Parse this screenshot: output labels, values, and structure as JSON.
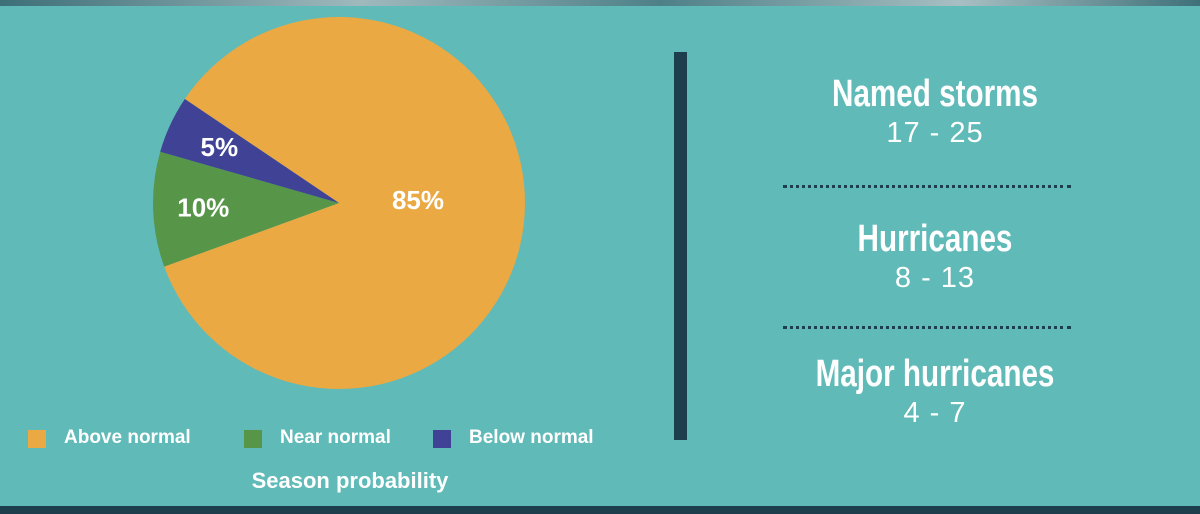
{
  "chart_data": {
    "type": "pie",
    "title": "Season probability",
    "slices": [
      {
        "label": "Above normal",
        "value": 85,
        "value_label": "85%",
        "color": "#eaa943"
      },
      {
        "label": "Near normal",
        "value": 10,
        "value_label": "10%",
        "color": "#579649"
      },
      {
        "label": "Below normal",
        "value": 5,
        "value_label": "5%",
        "color": "#3f4295"
      }
    ]
  },
  "legend": [
    {
      "label": "Above normal",
      "color": "#eaa943"
    },
    {
      "label": "Near normal",
      "color": "#579649"
    },
    {
      "label": "Below normal",
      "color": "#3f4295"
    }
  ],
  "stats": [
    {
      "title": "Named storms",
      "value": "17 - 25"
    },
    {
      "title": "Hurricanes",
      "value": "8 - 13"
    },
    {
      "title": "Major hurricanes",
      "value": "4 - 7"
    }
  ],
  "colors": {
    "background": "#60bab8",
    "divider": "#1d3e4c",
    "text": "#ffffff"
  }
}
